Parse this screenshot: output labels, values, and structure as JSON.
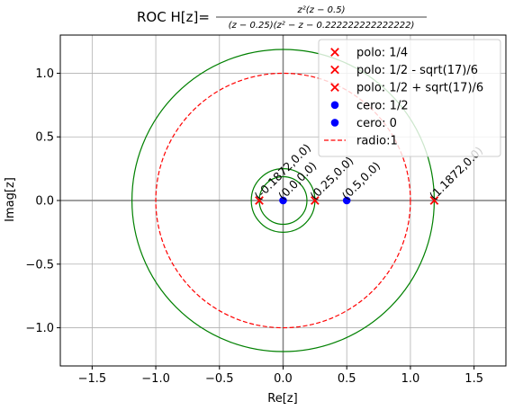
{
  "chart_data": {
    "type": "scatter",
    "title": "ROC H[z]=",
    "title_numerator": "z²(z − 0.5)",
    "title_denominator": "(z − 0.25)(z² − z − 0.222222222222222)",
    "xlabel": "Re[z]",
    "ylabel": "Imag[z]",
    "xlim": [
      -1.75,
      1.75
    ],
    "ylim": [
      -1.3,
      1.3
    ],
    "xticks": [
      -1.5,
      -1.0,
      -0.5,
      0.0,
      0.5,
      1.0,
      1.5
    ],
    "xtick_labels": [
      "−1.5",
      "−1.0",
      "−0.5",
      "0.0",
      "0.5",
      "1.0",
      "1.5"
    ],
    "yticks": [
      -1.0,
      -0.5,
      0.0,
      0.5,
      1.0
    ],
    "ytick_labels": [
      "−1.0",
      "−0.5",
      "0.0",
      "0.5",
      "1.0"
    ],
    "grid": true,
    "legend_position": "top-right",
    "series": [
      {
        "name": "polo: 1/4",
        "kind": "pole",
        "color": "#ff0000",
        "points": [
          [
            0.25,
            0.0
          ]
        ]
      },
      {
        "name": "polo: 1/2 - sqrt(17)/6",
        "kind": "pole",
        "color": "#ff0000",
        "points": [
          [
            -0.1872,
            0.0
          ]
        ]
      },
      {
        "name": "polo: 1/2 + sqrt(17)/6",
        "kind": "pole",
        "color": "#ff0000",
        "points": [
          [
            1.1872,
            0.0
          ]
        ]
      },
      {
        "name": "cero: 1/2",
        "kind": "zero",
        "color": "#0000ff",
        "points": [
          [
            0.5,
            0.0
          ]
        ]
      },
      {
        "name": "cero: 0",
        "kind": "zero",
        "color": "#0000ff",
        "points": [
          [
            0.0,
            0.0
          ]
        ]
      },
      {
        "name": "radio:1",
        "kind": "circle",
        "color": "#ff0000",
        "radius": 1.0
      }
    ],
    "roc_circles": {
      "color": "#008000",
      "radii": [
        0.1872,
        0.25,
        1.1872
      ]
    },
    "annotations": [
      {
        "text": "(-0.1872,0.0)",
        "x": -0.1872,
        "y": 0.0
      },
      {
        "text": "(0.0,0.0)",
        "x": 0.0,
        "y": 0.0
      },
      {
        "text": "(0.25,0.0)",
        "x": 0.25,
        "y": 0.0
      },
      {
        "text": "(0.5,0.0)",
        "x": 0.5,
        "y": 0.0
      },
      {
        "text": "(1.1872,0.0)",
        "x": 1.1872,
        "y": 0.0
      }
    ]
  }
}
